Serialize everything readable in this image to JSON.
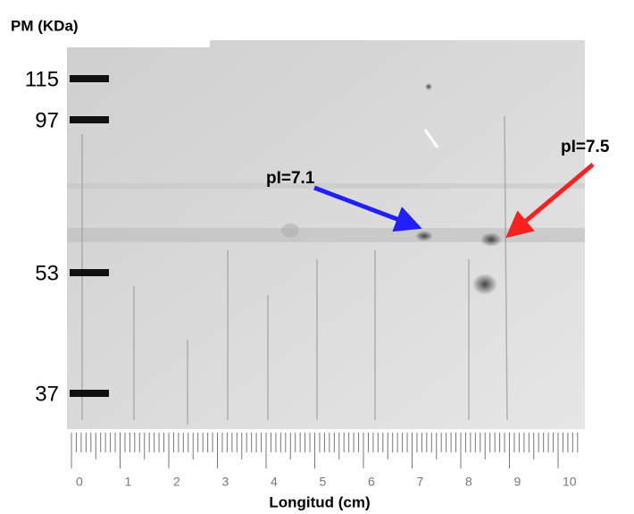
{
  "y_axis": {
    "title": "PM (KDa)",
    "markers": [
      "115",
      "97",
      "53",
      "37"
    ]
  },
  "annotations": [
    {
      "label": "pI=7.1"
    },
    {
      "label": "pI=7.5"
    }
  ],
  "ruler": {
    "labels": [
      "0",
      "1",
      "2",
      "3",
      "4",
      "5",
      "6",
      "7",
      "8",
      "9",
      "10"
    ]
  },
  "x_axis": {
    "title": "Longitud (cm)"
  }
}
